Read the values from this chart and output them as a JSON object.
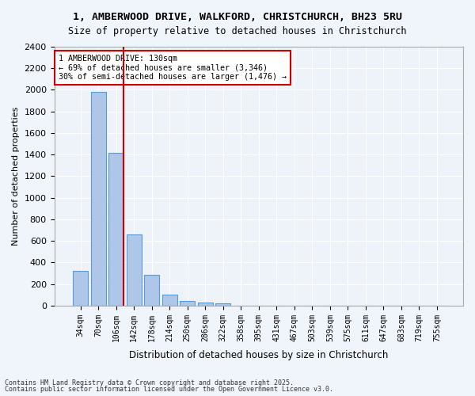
{
  "title_line1": "1, AMBERWOOD DRIVE, WALKFORD, CHRISTCHURCH, BH23 5RU",
  "title_line2": "Size of property relative to detached houses in Christchurch",
  "xlabel": "Distribution of detached houses by size in Christchurch",
  "ylabel": "Number of detached properties",
  "categories": [
    "34sqm",
    "70sqm",
    "106sqm",
    "142sqm",
    "178sqm",
    "214sqm",
    "250sqm",
    "286sqm",
    "322sqm",
    "358sqm",
    "395sqm",
    "431sqm",
    "467sqm",
    "503sqm",
    "539sqm",
    "575sqm",
    "611sqm",
    "647sqm",
    "683sqm",
    "719sqm",
    "755sqm"
  ],
  "values": [
    325,
    1980,
    1415,
    660,
    285,
    105,
    42,
    28,
    18,
    0,
    0,
    0,
    0,
    0,
    0,
    0,
    0,
    0,
    0,
    0,
    0
  ],
  "bar_color": "#aec6e8",
  "bar_edge_color": "#5b9bd5",
  "vline_x": 3,
  "vline_color": "#cc0000",
  "ylim": [
    0,
    2400
  ],
  "yticks": [
    0,
    200,
    400,
    600,
    800,
    1000,
    1200,
    1400,
    1600,
    1800,
    2000,
    2200,
    2400
  ],
  "annotation_title": "1 AMBERWOOD DRIVE: 130sqm",
  "annotation_line2": "← 69% of detached houses are smaller (3,346)",
  "annotation_line3": "30% of semi-detached houses are larger (1,476) →",
  "annotation_box_color": "#ffffff",
  "annotation_box_edge": "#cc0000",
  "bg_color": "#eef2f9",
  "grid_color": "#ffffff",
  "footer_line1": "Contains HM Land Registry data © Crown copyright and database right 2025.",
  "footer_line2": "Contains public sector information licensed under the Open Government Licence v3.0."
}
